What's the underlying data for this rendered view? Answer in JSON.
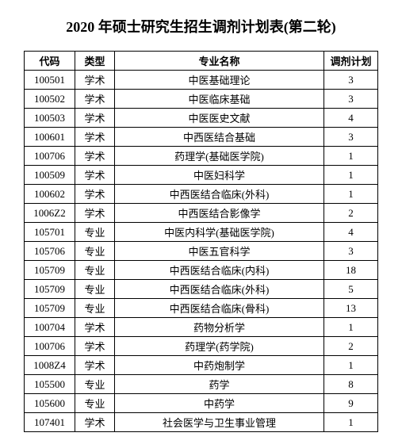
{
  "title": "2020 年硕士研究生招生调剂计划表(第二轮)",
  "title_fontsize": 18,
  "columns": [
    "代码",
    "类型",
    "专业名称",
    "调剂计划"
  ],
  "rows": [
    [
      "100501",
      "学术",
      "中医基础理论",
      "3"
    ],
    [
      "100502",
      "学术",
      "中医临床基础",
      "3"
    ],
    [
      "100503",
      "学术",
      "中医医史文献",
      "4"
    ],
    [
      "100601",
      "学术",
      "中西医结合基础",
      "3"
    ],
    [
      "100706",
      "学术",
      "药理学(基础医学院)",
      "1"
    ],
    [
      "100509",
      "学术",
      "中医妇科学",
      "1"
    ],
    [
      "100602",
      "学术",
      "中西医结合临床(外科)",
      "1"
    ],
    [
      "1006Z2",
      "学术",
      "中西医结合影像学",
      "2"
    ],
    [
      "105701",
      "专业",
      "中医内科学(基础医学院)",
      "4"
    ],
    [
      "105706",
      "专业",
      "中医五官科学",
      "3"
    ],
    [
      "105709",
      "专业",
      "中西医结合临床(内科)",
      "18"
    ],
    [
      "105709",
      "专业",
      "中西医结合临床(外科)",
      "5"
    ],
    [
      "105709",
      "专业",
      "中西医结合临床(骨科)",
      "13"
    ],
    [
      "100704",
      "学术",
      "药物分析学",
      "1"
    ],
    [
      "100706",
      "学术",
      "药理学(药学院)",
      "2"
    ],
    [
      "1008Z4",
      "学术",
      "中药炮制学",
      "1"
    ],
    [
      "105500",
      "专业",
      "药学",
      "8"
    ],
    [
      "105600",
      "专业",
      "中药学",
      "9"
    ],
    [
      "107401",
      "学术",
      "社会医学与卫生事业管理",
      "1"
    ]
  ],
  "cell_fontsize": 13,
  "text_color": "#000000",
  "background_color": "#ffffff",
  "border_color": "#000000"
}
